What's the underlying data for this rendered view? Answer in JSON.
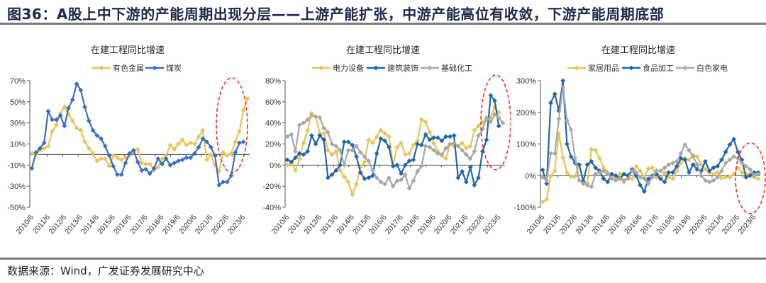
{
  "figure": {
    "title": "图36：A股上中下游的产能周期出现分层——上游产能扩张，中游产能高位有收敛，下游产能周期底部",
    "source": "数据来源：Wind，广发证券发展研究中心"
  },
  "colors": {
    "yellow": "#e8c45c",
    "blue": "#2266a8",
    "blue_dark": "#3a6fc0",
    "gray": "#a8a8a8",
    "highlight": "#e83030"
  },
  "chart_data": [
    {
      "type": "line",
      "title": "在建工程同比增速",
      "xlabel": "",
      "ylabel": "",
      "ylim": [
        -50,
        70
      ],
      "yticks": [
        70,
        50,
        30,
        10,
        -10,
        -30,
        -50
      ],
      "ytick_labels": [
        "70%",
        "50%",
        "30%",
        "10%",
        "-10%",
        "-30%",
        "-50%"
      ],
      "xtick_labels": [
        "2010/6",
        "2011/6",
        "2012/6",
        "2013/6",
        "2014/6",
        "2015/6",
        "2016/6",
        "2017/6",
        "2018/6",
        "2019/6",
        "2020/6",
        "2021/6",
        "2022/6",
        "2023/6"
      ],
      "legend_position": "top-center",
      "highlight": "dashed ellipse around latest 2022-2023 values",
      "series": [
        {
          "name": "有色金属",
          "color": "#e8c45c",
          "values": [
            1,
            0,
            4,
            6,
            8,
            22,
            28,
            39,
            45,
            38,
            32,
            25,
            23,
            12,
            6,
            1,
            -6,
            -4,
            -4,
            -11,
            -1,
            -3,
            -5,
            -3,
            -1,
            3,
            5,
            -8,
            -9,
            -9,
            -15,
            -12,
            -4,
            -1,
            9,
            5,
            10,
            14,
            9,
            11,
            10,
            17,
            23,
            -5,
            0,
            -10,
            -16,
            2,
            -1,
            1,
            12,
            22,
            42,
            53
          ]
        },
        {
          "name": "煤炭",
          "color": "#3a6fc0",
          "values": [
            -13,
            2,
            6,
            11,
            41,
            33,
            33,
            37,
            27,
            44,
            52,
            67,
            61,
            45,
            32,
            23,
            18,
            15,
            8,
            -1,
            -11,
            -19,
            -19,
            -8,
            1,
            4,
            -7,
            -15,
            -14,
            -18,
            -13,
            -4,
            -9,
            -4,
            -10,
            -8,
            -6,
            -5,
            -3,
            -3,
            1,
            7,
            15,
            12,
            7,
            -1,
            -29,
            -26,
            -26,
            -20,
            2,
            11,
            12
          ]
        }
      ]
    },
    {
      "type": "line",
      "title": "在建工程同比增速",
      "xlabel": "",
      "ylabel": "",
      "ylim": [
        -40,
        80
      ],
      "yticks": [
        80,
        60,
        40,
        20,
        0,
        -20,
        -40
      ],
      "ytick_labels": [
        "80%",
        "60%",
        "40%",
        "20%",
        "0%",
        "-20%",
        "-40%"
      ],
      "xtick_labels": [
        "2010/6",
        "2011/6",
        "2012/6",
        "2013/6",
        "2014/6",
        "2015/6",
        "2016/6",
        "2017/6",
        "2018/6",
        "2019/6",
        "2020/6",
        "2021/6",
        "2022/6",
        "2023/6"
      ],
      "legend_position": "top-center",
      "highlight": "dashed ellipse around latest 2022-2023 values",
      "series": [
        {
          "name": "电力设备",
          "color": "#e8c45c",
          "values": [
            0,
            2,
            -5,
            6,
            21,
            33,
            49,
            46,
            30,
            30,
            14,
            10,
            13,
            -5,
            -11,
            -16,
            -28,
            -18,
            -2,
            3,
            24,
            21,
            27,
            33,
            30,
            27,
            0,
            17,
            21,
            10,
            11,
            19,
            23,
            43,
            41,
            31,
            21,
            13,
            9,
            6,
            20,
            18,
            18,
            21,
            16,
            18,
            33,
            37,
            41,
            43,
            45,
            55,
            50
          ]
        },
        {
          "name": "建筑装饰",
          "color": "#2266a8",
          "values": [
            5,
            3,
            7,
            11,
            10,
            13,
            28,
            20,
            28,
            24,
            -12,
            -9,
            -5,
            0,
            22,
            22,
            19,
            8,
            -7,
            -13,
            -12,
            -10,
            11,
            25,
            23,
            17,
            -1,
            0,
            -8,
            0,
            4,
            5,
            20,
            19,
            29,
            24,
            26,
            26,
            23,
            27,
            27,
            28,
            -12,
            -6,
            -16,
            -2,
            -19,
            -12,
            13,
            24,
            66,
            61,
            37
          ]
        },
        {
          "name": "基础化工",
          "color": "#a8a8a8",
          "values": [
            27,
            29,
            13,
            38,
            40,
            43,
            47,
            46,
            45,
            35,
            31,
            20,
            18,
            14,
            0,
            14,
            14,
            18,
            12,
            8,
            4,
            -5,
            -12,
            -16,
            -18,
            -12,
            -20,
            -15,
            -14,
            -9,
            -22,
            -15,
            -6,
            -1,
            18,
            17,
            14,
            11,
            10,
            16,
            20,
            21,
            18,
            14,
            10,
            6,
            13,
            28,
            34,
            45,
            41,
            48,
            45,
            40
          ]
        }
      ]
    },
    {
      "type": "line",
      "title": "在建工程同比增速",
      "xlabel": "",
      "ylabel": "",
      "ylim": [
        -100,
        300
      ],
      "yticks": [
        300,
        200,
        100,
        0,
        -100
      ],
      "ytick_labels": [
        "300%",
        "200%",
        "100%",
        "0%",
        "-100%"
      ],
      "xtick_labels": [
        "2010/6",
        "2011/6",
        "2012/6",
        "2013/6",
        "2014/6",
        "2015/6",
        "2016/6",
        "2017/6",
        "2018/6",
        "2019/6",
        "2020/6",
        "2021/6",
        "2022/6",
        "2023/6"
      ],
      "legend_position": "top-center",
      "highlight": "dashed ellipse around latest 2022-2023 values",
      "series": [
        {
          "name": "家居用品",
          "color": "#e8c45c",
          "values": [
            -83,
            -75,
            -2,
            15,
            133,
            57,
            10,
            -3,
            -2,
            35,
            -18,
            -24,
            83,
            80,
            55,
            25,
            10,
            5,
            -15,
            5,
            -20,
            -5,
            -10,
            30,
            15,
            -5,
            22,
            25,
            -5,
            -10,
            10,
            -5,
            -10,
            15,
            40,
            55,
            50,
            65,
            60,
            35,
            20,
            10,
            5,
            10,
            -8,
            -5,
            -5,
            5,
            25,
            10,
            5,
            5,
            -5,
            -10
          ]
        },
        {
          "name": "食品加工",
          "color": "#2266a8",
          "values": [
            18,
            -25,
            230,
            258,
            205,
            300,
            100,
            60,
            40,
            35,
            -18,
            35,
            45,
            25,
            15,
            -10,
            -20,
            5,
            0,
            -10,
            5,
            0,
            20,
            0,
            -30,
            -50,
            -10,
            0,
            5,
            -10,
            -20,
            10,
            10,
            30,
            55,
            50,
            10,
            35,
            20,
            15,
            45,
            15,
            25,
            30,
            50,
            75,
            98,
            115,
            75,
            50,
            -5,
            0,
            10,
            10
          ]
        },
        {
          "name": "白色家电",
          "color": "#a8a8a8",
          "values": [
            -5,
            -15,
            70,
            70,
            180,
            280,
            175,
            145,
            55,
            -15,
            -25,
            -30,
            -35,
            5,
            10,
            15,
            5,
            -10,
            -15,
            -10,
            -15,
            -10,
            15,
            10,
            -5,
            -10,
            -25,
            -5,
            15,
            15,
            25,
            35,
            40,
            45,
            70,
            98,
            80,
            60,
            35,
            0,
            -15,
            -20,
            -15,
            -5,
            15,
            40,
            50,
            60,
            55,
            40,
            30,
            20,
            0,
            5
          ]
        }
      ]
    }
  ]
}
